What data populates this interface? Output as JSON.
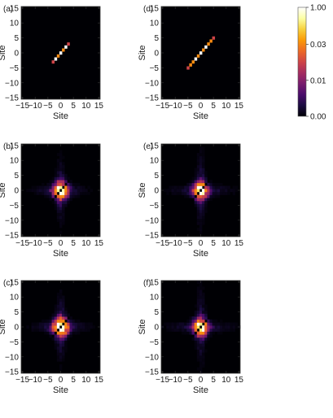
{
  "chart_data": [
    {
      "panel": "(a)",
      "type": "heatmap",
      "xlabel": "Site",
      "ylabel": "Site",
      "x_ticks": [
        "−15",
        "−10",
        "−5",
        "0",
        "5",
        "10",
        "15"
      ],
      "y_ticks": [
        "15",
        "10",
        "5",
        "0",
        "−5",
        "−10",
        "−15"
      ],
      "xlim": [
        -15.5,
        15.5
      ],
      "ylim": [
        -15.5,
        15.5
      ],
      "colormap": "inferno",
      "pattern": {
        "kind": "diagonal",
        "halfwidth": 3,
        "diag_peak": 0.045,
        "spread": 0,
        "gap": false
      }
    },
    {
      "panel": "(d)",
      "type": "heatmap",
      "xlabel": "Site",
      "ylabel": "Site",
      "x_ticks": [
        "−15",
        "−10",
        "−5",
        "0",
        "5",
        "10",
        "15"
      ],
      "y_ticks": [
        "15",
        "10",
        "5",
        "0",
        "−5",
        "−10",
        "−15"
      ],
      "xlim": [
        -15.5,
        15.5
      ],
      "ylim": [
        -15.5,
        15.5
      ],
      "colormap": "inferno",
      "pattern": {
        "kind": "diagonal",
        "halfwidth": 5,
        "diag_peak": 0.05,
        "spread": 0,
        "gap": false
      }
    },
    {
      "panel": "(b)",
      "type": "heatmap",
      "xlabel": "Site",
      "ylabel": "Site",
      "x_ticks": [
        "−15",
        "−10",
        "−5",
        "0",
        "5",
        "10",
        "15"
      ],
      "y_ticks": [
        "15",
        "10",
        "5",
        "0",
        "−5",
        "−10",
        "−15"
      ],
      "xlim": [
        -15.5,
        15.5
      ],
      "ylim": [
        -15.5,
        15.5
      ],
      "colormap": "inferno",
      "pattern": {
        "kind": "cross",
        "core": 0.06,
        "arm": 0.01,
        "spread": 4,
        "gap": true
      }
    },
    {
      "panel": "(e)",
      "type": "heatmap",
      "xlabel": "Site",
      "ylabel": "Site",
      "x_ticks": [
        "−15",
        "−10",
        "−5",
        "0",
        "5",
        "10",
        "15"
      ],
      "y_ticks": [
        "15",
        "10",
        "5",
        "0",
        "−5",
        "−10",
        "−15"
      ],
      "xlim": [
        -15.5,
        15.5
      ],
      "ylim": [
        -15.5,
        15.5
      ],
      "colormap": "inferno",
      "pattern": {
        "kind": "cross",
        "core": 0.05,
        "arm": 0.008,
        "spread": 5,
        "gap": true
      }
    },
    {
      "panel": "(c)",
      "type": "heatmap",
      "xlabel": "Site",
      "ylabel": "Site",
      "x_ticks": [
        "−15",
        "−10",
        "−5",
        "0",
        "5",
        "10",
        "15"
      ],
      "y_ticks": [
        "15",
        "10",
        "5",
        "0",
        "−5",
        "−10",
        "−15"
      ],
      "xlim": [
        -15.5,
        15.5
      ],
      "ylim": [
        -15.5,
        15.5
      ],
      "colormap": "inferno",
      "pattern": {
        "kind": "cross",
        "core": 0.07,
        "arm": 0.012,
        "spread": 4,
        "gap": true
      }
    },
    {
      "panel": "(f)",
      "type": "heatmap",
      "xlabel": "Site",
      "ylabel": "Site",
      "x_ticks": [
        "−15",
        "−10",
        "−5",
        "0",
        "5",
        "10",
        "15"
      ],
      "y_ticks": [
        "15",
        "10",
        "5",
        "0",
        "−5",
        "−10",
        "−15"
      ],
      "xlim": [
        -15.5,
        15.5
      ],
      "ylim": [
        -15.5,
        15.5
      ],
      "colormap": "inferno",
      "pattern": {
        "kind": "cross",
        "core": 0.06,
        "arm": 0.006,
        "spread": 6,
        "gap": true
      }
    }
  ],
  "colorbar": {
    "tick_labels": [
      "1.00",
      "0.03",
      "0.01",
      "0.00"
    ],
    "tick_values": [
      1.0,
      0.03,
      0.01,
      0.0
    ],
    "stops": [
      "#000004",
      "#1b0c41",
      "#4a0c6b",
      "#781c6d",
      "#a52c60",
      "#cf4446",
      "#ed6925",
      "#fb9b06",
      "#f7d13d",
      "#fcffa4",
      "#ffffff"
    ]
  }
}
